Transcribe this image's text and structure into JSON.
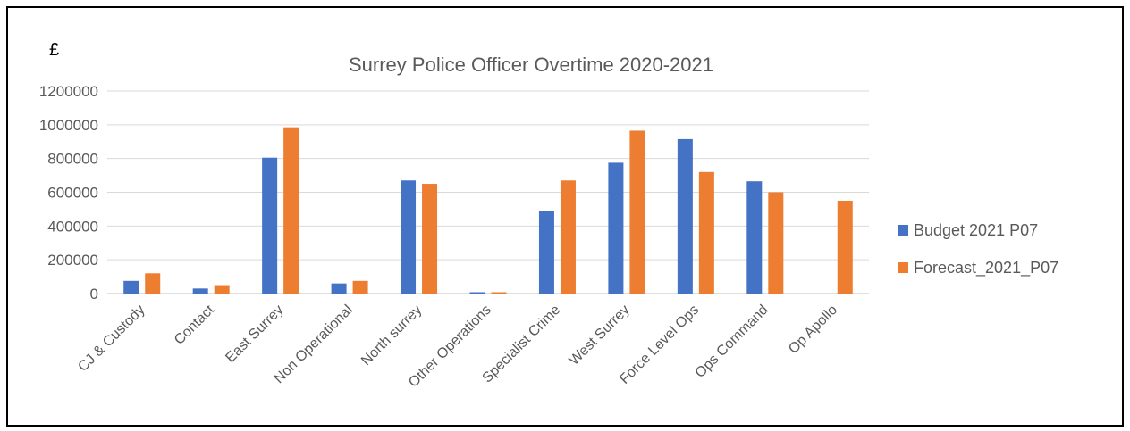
{
  "chart_data": {
    "type": "bar",
    "title": "Surrey Police Officer Overtime 2020-2021",
    "ylabel": "£",
    "xlabel": "",
    "ylim": [
      0,
      1200000
    ],
    "yticks": [
      "0",
      "200000",
      "400000",
      "600000",
      "800000",
      "1000000",
      "1200000"
    ],
    "grid": true,
    "legend_position": "right",
    "categories": [
      "CJ & Custody",
      "Contact",
      "East Surrey",
      "Non Operational",
      "North surrey",
      "Other Operations",
      "Specialist Crime",
      "West Surrey",
      "Force Level Ops",
      "Ops Command",
      "Op Apollo"
    ],
    "series": [
      {
        "name": "Budget 2021 P07",
        "color": "#4472C4",
        "values": [
          75000,
          30000,
          805000,
          60000,
          670000,
          8000,
          490000,
          775000,
          915000,
          665000,
          0
        ]
      },
      {
        "name": "Forecast_2021_P07",
        "color": "#ED7D31",
        "values": [
          120000,
          50000,
          985000,
          75000,
          650000,
          8000,
          670000,
          965000,
          720000,
          600000,
          550000
        ]
      }
    ]
  }
}
